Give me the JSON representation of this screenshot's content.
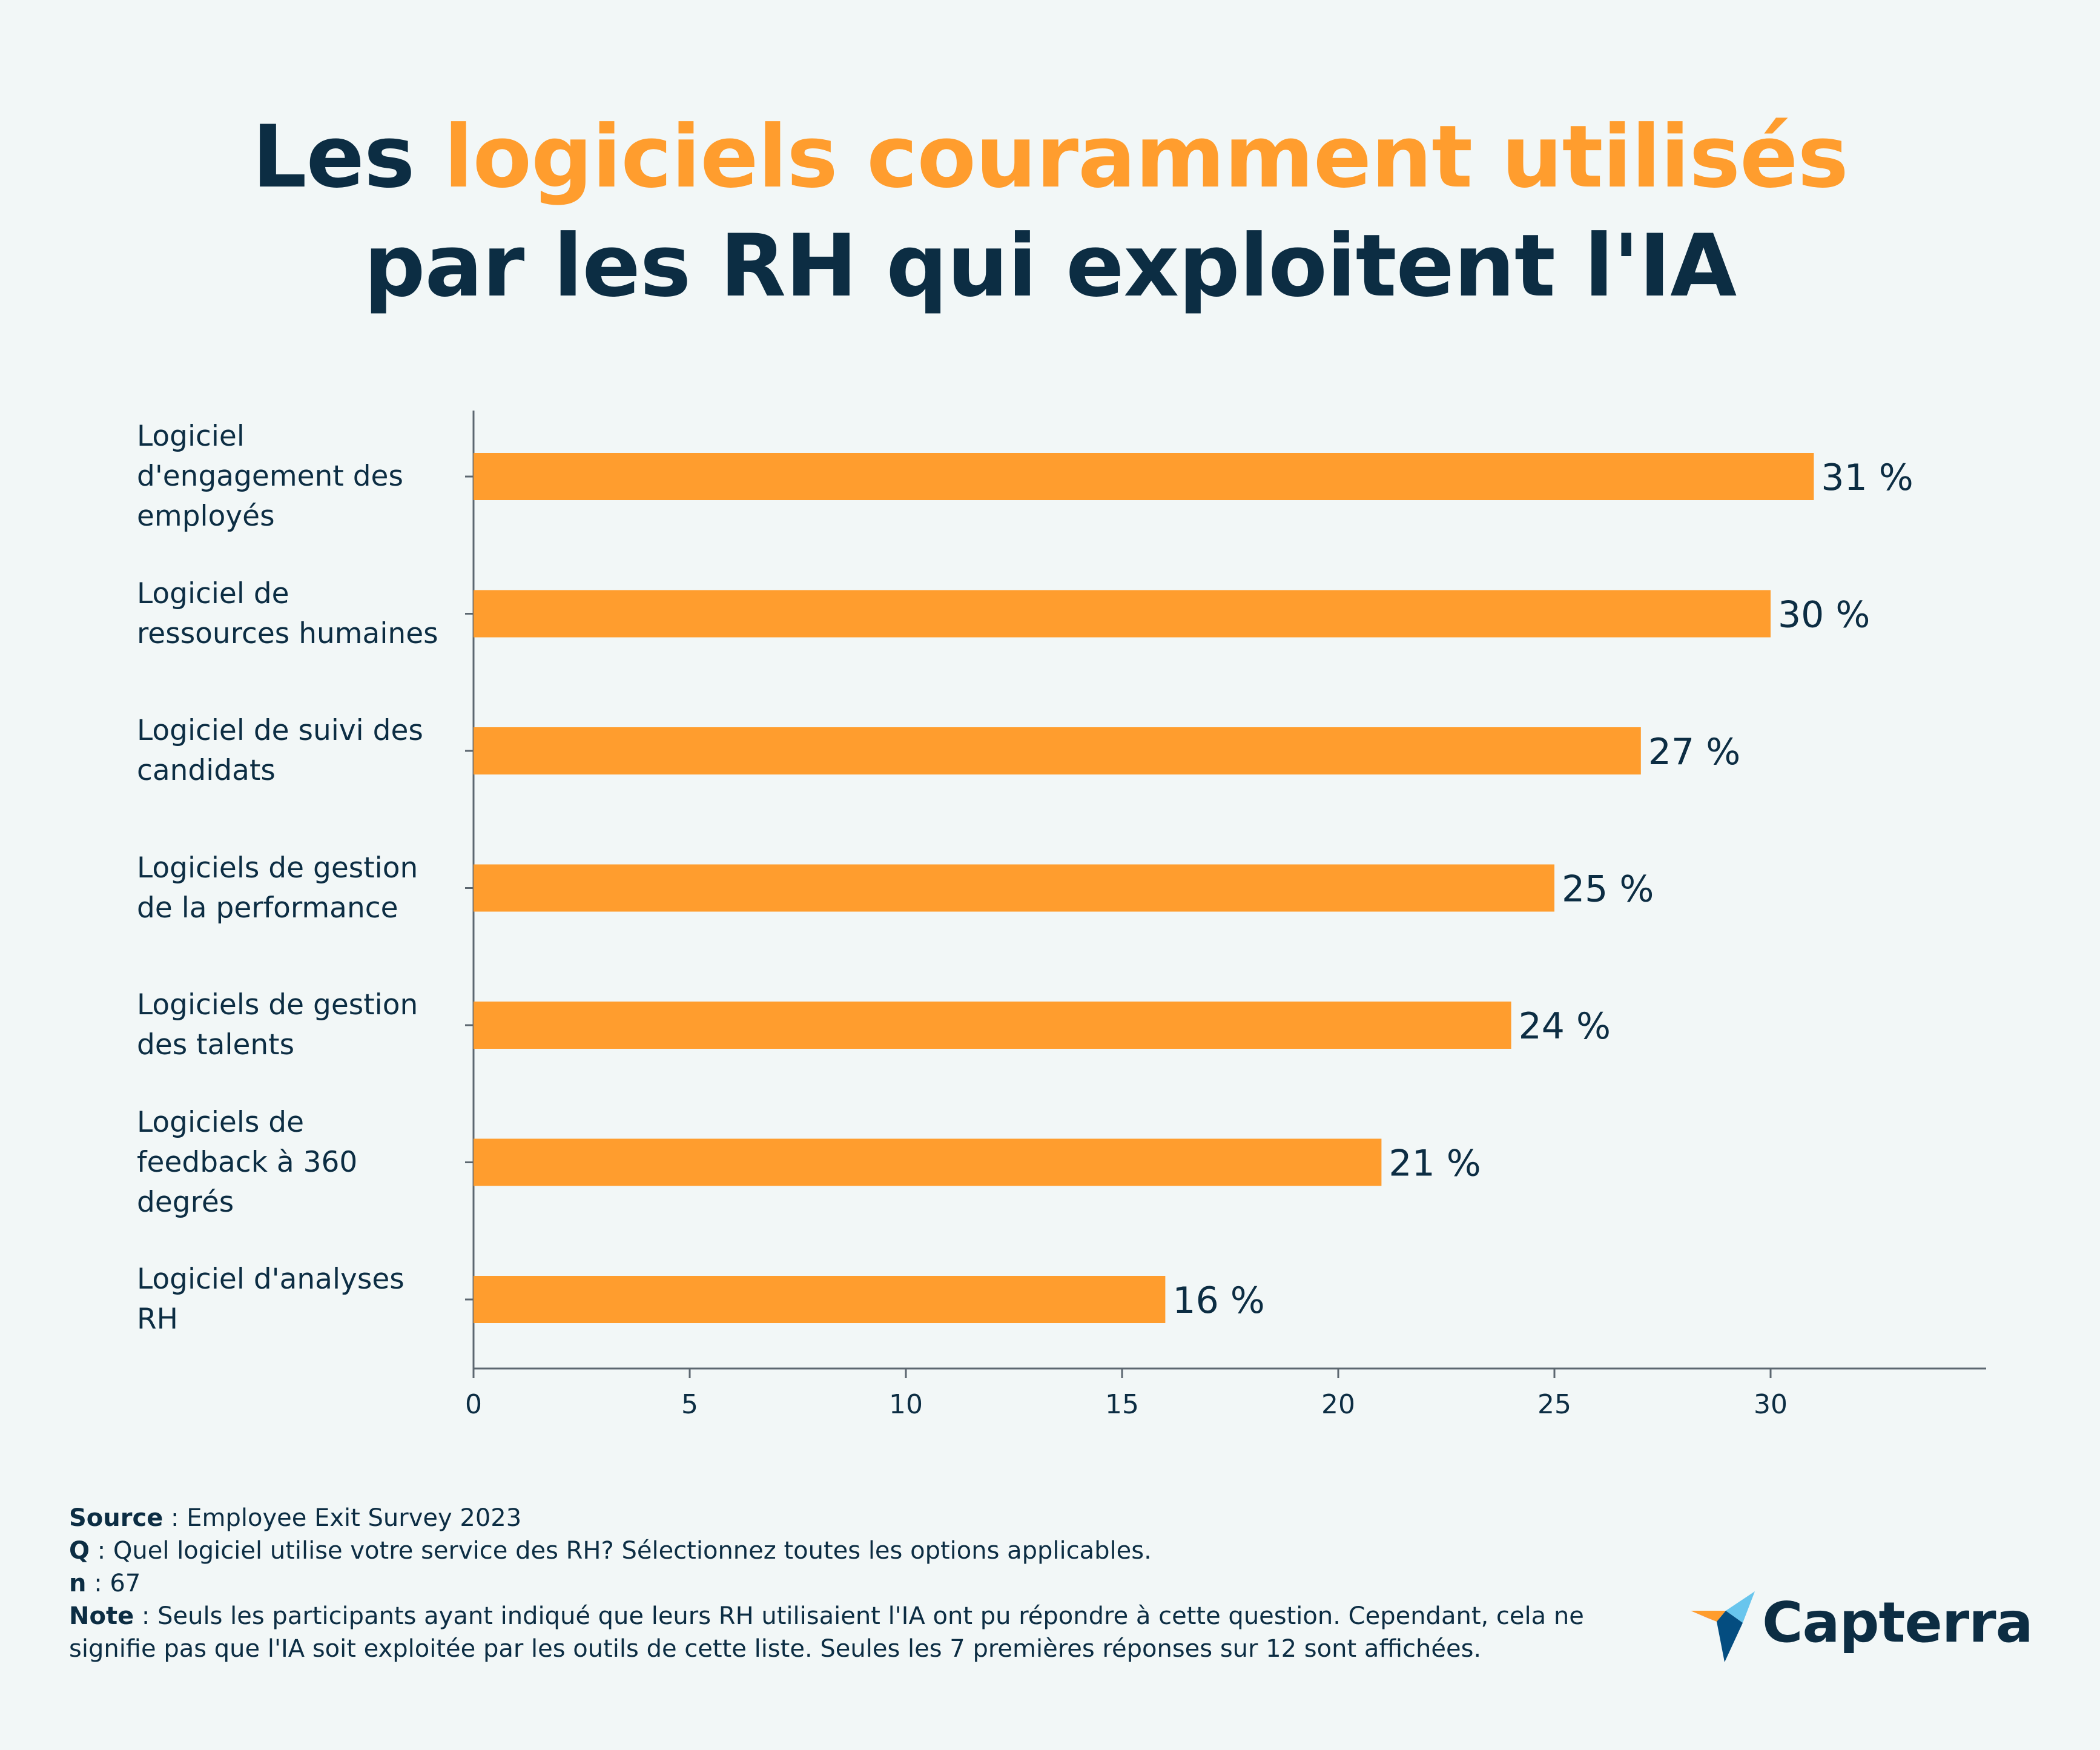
{
  "title": {
    "prefix": "Les",
    "highlight": "logiciels couramment utilisés",
    "line2": "par les RH qui exploitent l'IA"
  },
  "colors": {
    "bar": "#ff9d2e",
    "text": "#0c2d43",
    "background": "#f2f7f7",
    "axis": "#5c6770"
  },
  "chart_data": {
    "type": "bar",
    "orientation": "horizontal",
    "categories": [
      "Logiciel d'engagement des employés",
      "Logiciel de ressources humaines",
      "Logiciel de suivi des candidats",
      "Logiciels de gestion de la performance",
      "Logiciels de gestion des talents",
      "Logiciels de feedback à 360 degrés",
      "Logiciel d'analyses RH"
    ],
    "values": [
      31,
      30,
      27,
      25,
      24,
      21,
      16
    ],
    "value_labels": [
      "31 %",
      "30 %",
      "27 %",
      "25 %",
      "24 %",
      "21 %",
      "16 %"
    ],
    "xticks": [
      0,
      5,
      10,
      15,
      20,
      25,
      30
    ],
    "xlim": [
      0,
      35
    ],
    "title": "Les logiciels couramment utilisés par les RH qui exploitent l'IA",
    "xlabel": "",
    "ylabel": ""
  },
  "labels_display": [
    [
      "Logiciel",
      "d'engagement des",
      "employés"
    ],
    [
      "Logiciel de",
      "ressources humaines"
    ],
    [
      "Logiciel de suivi des",
      "candidats"
    ],
    [
      "Logiciels de gestion",
      "de la performance"
    ],
    [
      "Logiciels de gestion",
      "des talents"
    ],
    [
      "Logiciels de",
      "feedback à 360",
      "degrés"
    ],
    [
      "Logiciel d'analyses",
      "RH"
    ]
  ],
  "footer": {
    "source_label": "Source",
    "source_text": " : Employee Exit Survey 2023",
    "q_label": "Q",
    "q_text": " : Quel logiciel utilise votre service des RH? Sélectionnez toutes les options applicables.",
    "n_label": "n",
    "n_text": " : 67",
    "note_label": "Note",
    "note_text": " : Seuls les participants ayant indiqué que leurs RH utilisaient l'IA ont pu répondre à cette question. Cependant, cela ne signifie pas que l'IA soit exploitée par les outils de cette liste. Seules les 7 premières réponses sur 12 sont affichées."
  },
  "logo": {
    "text": "Capterra"
  }
}
